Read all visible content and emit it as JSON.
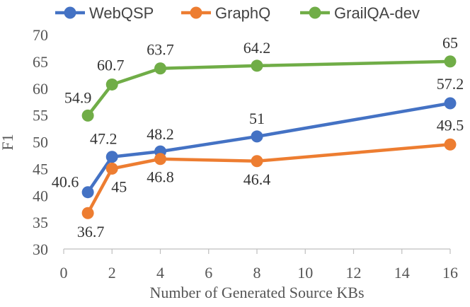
{
  "chart_data": {
    "type": "line",
    "title": "",
    "xlabel": "Number of Generated Source KBs",
    "ylabel": "F1",
    "xlim": [
      0,
      16
    ],
    "ylim": [
      30,
      70
    ],
    "xticks": [
      0,
      2,
      4,
      6,
      8,
      10,
      12,
      14,
      16
    ],
    "yticks": [
      30,
      35,
      40,
      45,
      50,
      55,
      60,
      65,
      70
    ],
    "grid": false,
    "legend_position": "top",
    "x": [
      1,
      2,
      4,
      8,
      16
    ],
    "series": [
      {
        "name": "WebQSP",
        "color": "#4472C4",
        "values": [
          40.6,
          47.2,
          48.2,
          51,
          57.2
        ],
        "labels": [
          "40.6",
          "47.2",
          "48.2",
          "51",
          "57.2"
        ]
      },
      {
        "name": "GraphQ",
        "color": "#ED7D31",
        "values": [
          36.7,
          45,
          46.8,
          46.4,
          49.5
        ],
        "labels": [
          "36.7",
          "45",
          "46.8",
          "46.4",
          "49.5"
        ]
      },
      {
        "name": "GrailQA-dev",
        "color": "#70AD47",
        "values": [
          54.9,
          60.7,
          63.7,
          64.2,
          65
        ],
        "labels": [
          "54.9",
          "60.7",
          "63.7",
          "64.2",
          "65"
        ]
      }
    ]
  }
}
